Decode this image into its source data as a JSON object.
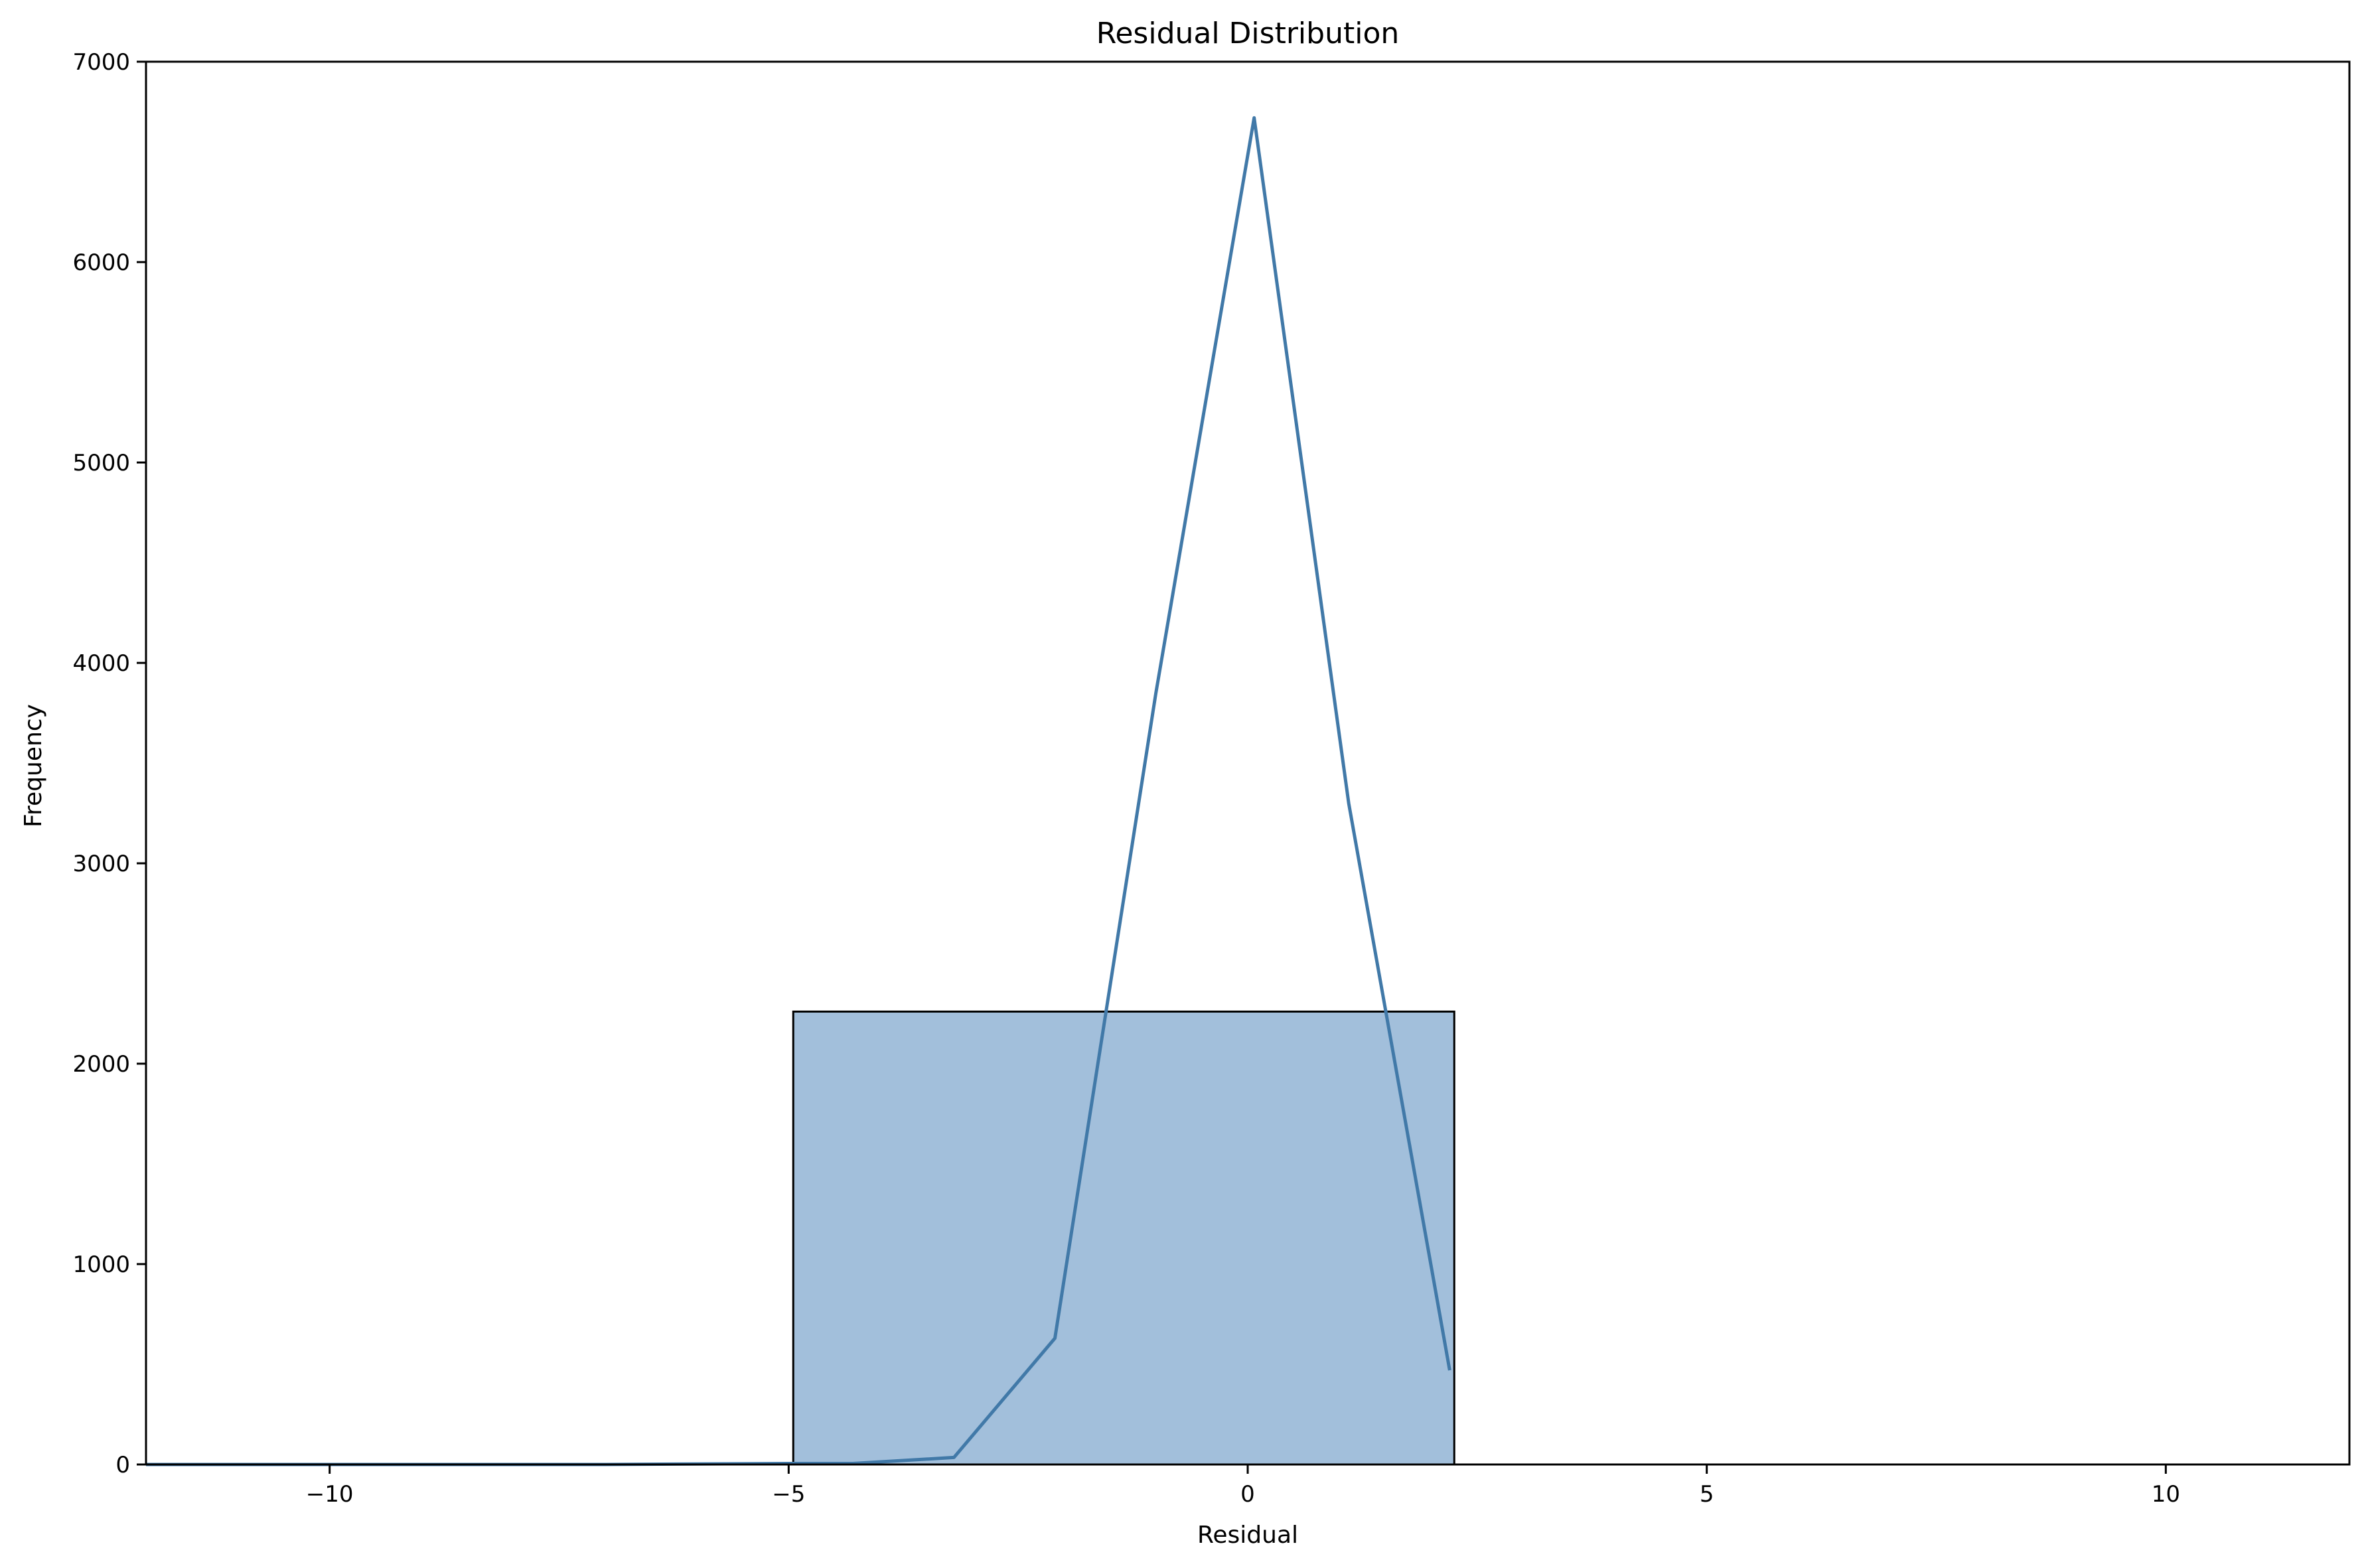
{
  "chart_data": {
    "type": "bar",
    "title": "Residual Distribution",
    "xlabel": "Residual",
    "ylabel": "Frequency",
    "xlim": [
      -12,
      12
    ],
    "ylim": [
      0,
      7000
    ],
    "x_ticks": [
      -10,
      -5,
      0,
      5,
      10
    ],
    "x_tick_labels": [
      "−10",
      "−5",
      "0",
      "5",
      "10"
    ],
    "y_ticks": [
      0,
      1000,
      2000,
      3000,
      4000,
      5000,
      6000,
      7000
    ],
    "y_tick_labels": [
      "0",
      "1000",
      "2000",
      "3000",
      "4000",
      "5000",
      "6000",
      "7000"
    ],
    "grid": false,
    "bars": [
      {
        "x_start": -4.95,
        "x_end": 2.25,
        "value": 2260
      }
    ],
    "density_line": {
      "x": [
        -12,
        -7,
        -5,
        -4.3,
        -3.2,
        -2.1,
        -1.0,
        0.07,
        1.1,
        2.2
      ],
      "y": [
        0,
        0,
        5,
        5,
        35,
        630,
        3850,
        6720,
        3300,
        470
      ]
    },
    "colors": {
      "bar_fill": "#a2bfdb",
      "bar_edge": "#000000",
      "line": "#4179a8",
      "axes": "#000000"
    }
  }
}
